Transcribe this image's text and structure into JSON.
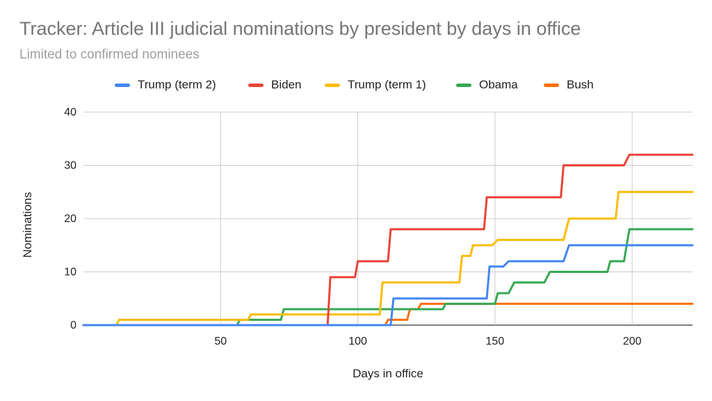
{
  "chart_data": {
    "type": "line",
    "title": "Tracker: Article III judicial nominations by president by days in office",
    "subtitle": "Limited to confirmed nominees",
    "xlabel": "Days in office",
    "ylabel": "Nominations",
    "xlim": [
      0,
      222
    ],
    "ylim": [
      0,
      40
    ],
    "xticks": [
      50,
      100,
      150,
      200
    ],
    "yticks": [
      0,
      10,
      20,
      30,
      40
    ],
    "grid": true,
    "step": true,
    "legend_position": "top",
    "series": [
      {
        "name": "Trump (term 2)",
        "color": "#4285f4",
        "points": [
          [
            0,
            0
          ],
          [
            112,
            0
          ],
          [
            113,
            5
          ],
          [
            147,
            5
          ],
          [
            148,
            11
          ],
          [
            153,
            11
          ],
          [
            155,
            12
          ],
          [
            175,
            12
          ],
          [
            177,
            15
          ],
          [
            222,
            15
          ]
        ]
      },
      {
        "name": "Biden",
        "color": "#ea4335",
        "points": [
          [
            0,
            0
          ],
          [
            89,
            0
          ],
          [
            90,
            9
          ],
          [
            99,
            9
          ],
          [
            100,
            12
          ],
          [
            111,
            12
          ],
          [
            112,
            18
          ],
          [
            146,
            18
          ],
          [
            147,
            24
          ],
          [
            174,
            24
          ],
          [
            175,
            30
          ],
          [
            197,
            30
          ],
          [
            199,
            32
          ],
          [
            222,
            32
          ]
        ]
      },
      {
        "name": "Trump (term 1)",
        "color": "#fbbc04",
        "points": [
          [
            0,
            0
          ],
          [
            12,
            0
          ],
          [
            13,
            1
          ],
          [
            60,
            1
          ],
          [
            61,
            2
          ],
          [
            108,
            2
          ],
          [
            109,
            8
          ],
          [
            137,
            8
          ],
          [
            138,
            13
          ],
          [
            141,
            13
          ],
          [
            142,
            15
          ],
          [
            149,
            15
          ],
          [
            151,
            16
          ],
          [
            175,
            16
          ],
          [
            177,
            20
          ],
          [
            194,
            20
          ],
          [
            195,
            25
          ],
          [
            222,
            25
          ]
        ]
      },
      {
        "name": "Obama",
        "color": "#34a853",
        "points": [
          [
            0,
            0
          ],
          [
            56,
            0
          ],
          [
            57,
            1
          ],
          [
            72,
            1
          ],
          [
            73,
            3
          ],
          [
            131,
            3
          ],
          [
            132,
            4
          ],
          [
            150,
            4
          ],
          [
            151,
            6
          ],
          [
            155,
            6
          ],
          [
            157,
            8
          ],
          [
            168,
            8
          ],
          [
            170,
            10
          ],
          [
            191,
            10
          ],
          [
            192,
            12
          ],
          [
            197,
            12
          ],
          [
            199,
            18
          ],
          [
            222,
            18
          ]
        ]
      },
      {
        "name": "Bush",
        "color": "#ff6d01",
        "points": [
          [
            0,
            0
          ],
          [
            110,
            0
          ],
          [
            111,
            1
          ],
          [
            118,
            1
          ],
          [
            119,
            3
          ],
          [
            122,
            3
          ],
          [
            123,
            4
          ],
          [
            222,
            4
          ]
        ]
      }
    ]
  }
}
